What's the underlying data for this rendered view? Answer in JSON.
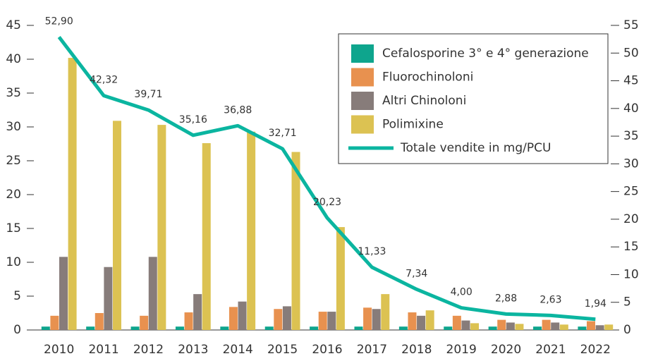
{
  "chart_data": {
    "type": "bar",
    "categories": [
      "2010",
      "2011",
      "2012",
      "2013",
      "2014",
      "2015",
      "2016",
      "2017",
      "2018",
      "2019",
      "2020",
      "2021",
      "2022"
    ],
    "series": [
      {
        "name": "Cefalosporine 3° e 4° generazione",
        "color": "#0ea58d",
        "values": [
          0.5,
          0.5,
          0.5,
          0.5,
          0.5,
          0.5,
          0.5,
          0.5,
          0.5,
          0.5,
          0.5,
          0.5,
          0.5
        ]
      },
      {
        "name": "Fluorochinoloni",
        "color": "#e8914f",
        "values": [
          2.1,
          2.5,
          2.1,
          2.6,
          3.4,
          3.1,
          2.7,
          3.3,
          2.6,
          2.1,
          1.5,
          1.5,
          1.3
        ]
      },
      {
        "name": "Altri Chinoloni",
        "color": "#877c7a",
        "values": [
          10.8,
          9.3,
          10.8,
          5.3,
          4.2,
          3.5,
          2.7,
          3.1,
          2.1,
          1.4,
          1.1,
          1.1,
          0.7
        ]
      },
      {
        "name": "Polimixine",
        "color": "#dcc252",
        "values": [
          40.2,
          30.9,
          30.3,
          27.6,
          29.3,
          26.3,
          15.2,
          5.3,
          2.9,
          1.0,
          0.9,
          0.8,
          0.8
        ]
      },
      {
        "name": "Totale vendite in mg/PCU",
        "type": "line",
        "axis": "y2",
        "color": "#0bb5a0",
        "values": [
          52.9,
          42.32,
          39.71,
          35.16,
          36.88,
          32.71,
          20.23,
          11.33,
          7.34,
          4.0,
          2.88,
          2.63,
          1.94
        ],
        "value_labels": [
          "52,90",
          "42,32",
          "39,71",
          "35,16",
          "36,88",
          "32,71",
          "20,23",
          "11,33",
          "7,34",
          "4,00",
          "2,88",
          "2,63",
          "1,94"
        ]
      }
    ],
    "ylim": [
      0,
      45
    ],
    "yticks": [
      0,
      5,
      10,
      15,
      20,
      25,
      30,
      35,
      40,
      45
    ],
    "y2lim": [
      0,
      55
    ],
    "y2ticks": [
      0,
      5,
      10,
      15,
      20,
      25,
      30,
      35,
      40,
      45,
      50,
      55
    ],
    "grid": false,
    "legend": "upper right"
  }
}
